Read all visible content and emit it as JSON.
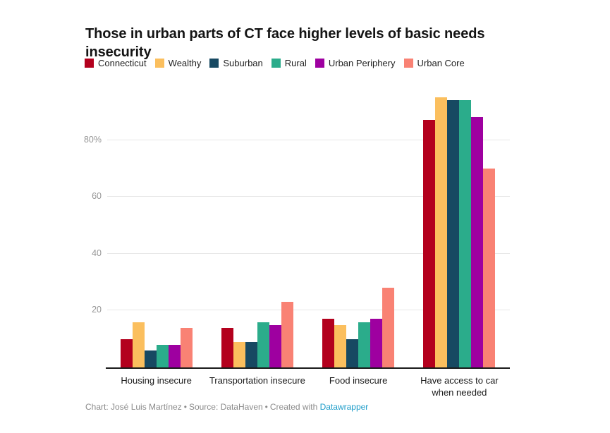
{
  "header": {
    "title": "Those in urban parts of CT face higher levels of basic needs insecurity"
  },
  "chart_data": {
    "type": "bar",
    "categories": [
      "Housing insecure",
      "Transportation insecure",
      "Food insecure",
      "Have access to car when needed"
    ],
    "series": [
      {
        "name": "Connecticut",
        "color": "#b3001d",
        "values": [
          10,
          14,
          17,
          87
        ]
      },
      {
        "name": "Wealthy",
        "color": "#fbbf5e",
        "values": [
          16,
          9,
          15,
          95
        ]
      },
      {
        "name": "Suburban",
        "color": "#174962",
        "values": [
          6,
          9,
          10,
          94
        ]
      },
      {
        "name": "Rural",
        "color": "#2bac8b",
        "values": [
          8,
          16,
          16,
          94
        ]
      },
      {
        "name": "Urban Periphery",
        "color": "#9e00a0",
        "values": [
          8,
          15,
          17,
          88
        ]
      },
      {
        "name": "Urban Core",
        "color": "#f98274",
        "values": [
          14,
          23,
          28,
          70
        ]
      }
    ],
    "ylabel": "",
    "xlabel": "",
    "y_axis": {
      "ticks": [
        20,
        40,
        60,
        80
      ],
      "tick_labels": [
        "20",
        "40",
        "60",
        "80%"
      ],
      "ylim": [
        0,
        100
      ],
      "grid": true
    },
    "legend_position": "top"
  },
  "footer": {
    "credit": "Chart: José Luis Martínez",
    "source": "Source: DataHaven",
    "created_with": "Created with",
    "tool_link": "Datawrapper",
    "separator": "•"
  }
}
